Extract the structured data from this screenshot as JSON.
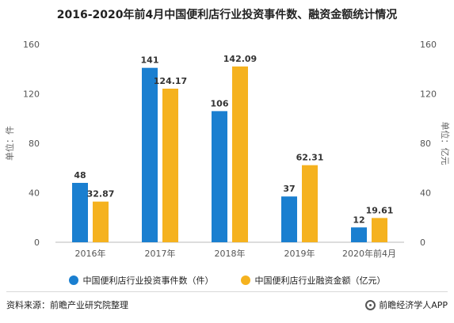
{
  "chart_data": {
    "type": "bar",
    "title": "2016-2020年前4月中国便利店行业投资事件数、融资金额统计情况",
    "categories": [
      "2016年",
      "2017年",
      "2018年",
      "2019年",
      "2020年前4月"
    ],
    "series": [
      {
        "name": "中国便利店行业投资事件数（件）",
        "axis": "left",
        "color": "#1a7fd0",
        "values": [
          48,
          141,
          106,
          37,
          12
        ],
        "labels": [
          "48",
          "141",
          "106",
          "37",
          "12"
        ]
      },
      {
        "name": "中国便利店行业融资金额（亿元）",
        "axis": "right",
        "color": "#f5b21f",
        "values": [
          32.87,
          124.17,
          142.09,
          62.31,
          19.61
        ],
        "labels": [
          "32.87",
          "124.17",
          "142.09",
          "62.31",
          "19.61"
        ]
      }
    ],
    "ylabel": "单位：件",
    "y2label": "单位：亿元",
    "ylim": [
      0,
      160
    ],
    "y2lim": [
      0,
      160
    ],
    "yticks": [
      "0",
      "40",
      "80",
      "120",
      "160"
    ],
    "y2ticks": [
      "0",
      "40",
      "80",
      "120",
      "160"
    ],
    "grid": false,
    "legend_position": "bottom"
  },
  "footer": {
    "source": "资料来源：前瞻产业研究院整理",
    "brand": "前瞻经济学人APP"
  }
}
